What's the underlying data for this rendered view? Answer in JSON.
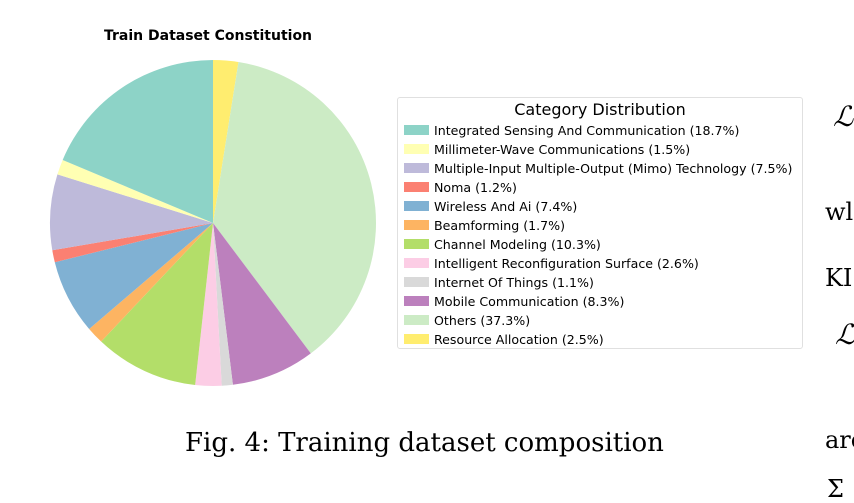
{
  "chart_data": {
    "type": "pie",
    "title": "Train Dataset Constitution",
    "legend_title": "Category Distribution",
    "legend_position": "right",
    "start": "top",
    "direction": "clockwise",
    "slices": [
      {
        "label": "Resource Allocation (2.5%)",
        "value": 2.5,
        "color": "#ffed6f"
      },
      {
        "label": "Others (37.3%)",
        "value": 37.3,
        "color": "#ccebc5"
      },
      {
        "label": "Mobile Communication (8.3%)",
        "value": 8.3,
        "color": "#bc80bd"
      },
      {
        "label": "Internet Of Things (1.1%)",
        "value": 1.1,
        "color": "#d9d9d9"
      },
      {
        "label": "Intelligent Reconfiguration Surface (2.6%)",
        "value": 2.6,
        "color": "#fccde5"
      },
      {
        "label": "Channel Modeling (10.3%)",
        "value": 10.3,
        "color": "#b3de69"
      },
      {
        "label": "Beamforming (1.7%)",
        "value": 1.7,
        "color": "#fdb462"
      },
      {
        "label": "Wireless And Ai (7.4%)",
        "value": 7.4,
        "color": "#80b1d3"
      },
      {
        "label": "Noma (1.2%)",
        "value": 1.2,
        "color": "#fb8072"
      },
      {
        "label": "Multiple-Input Multiple-Output (Mimo) Technology (7.5%)",
        "value": 7.5,
        "color": "#bebada"
      },
      {
        "label": "Millimeter-Wave Communications (1.5%)",
        "value": 1.5,
        "color": "#ffffb3"
      },
      {
        "label": "Integrated Sensing And Communication (18.7%)",
        "value": 18.7,
        "color": "#8dd3c7"
      }
    ],
    "legend": [
      {
        "label": "Integrated Sensing And Communication (18.7%)",
        "color": "#8dd3c7"
      },
      {
        "label": "Millimeter-Wave Communications (1.5%)",
        "color": "#ffffb3"
      },
      {
        "label": "Multiple-Input Multiple-Output (Mimo) Technology (7.5%)",
        "color": "#bebada"
      },
      {
        "label": "Noma (1.2%)",
        "color": "#fb8072"
      },
      {
        "label": "Wireless And Ai (7.4%)",
        "color": "#80b1d3"
      },
      {
        "label": "Beamforming (1.7%)",
        "color": "#fdb462"
      },
      {
        "label": "Channel Modeling (10.3%)",
        "color": "#b3de69"
      },
      {
        "label": "Intelligent Reconfiguration Surface (2.6%)",
        "color": "#fccde5"
      },
      {
        "label": "Internet Of Things (1.1%)",
        "color": "#d9d9d9"
      },
      {
        "label": "Mobile Communication (8.3%)",
        "color": "#bc80bd"
      },
      {
        "label": "Others (37.3%)",
        "color": "#ccebc5"
      },
      {
        "label": "Resource Allocation (2.5%)",
        "color": "#ffed6f"
      }
    ]
  },
  "caption": "Fig. 4: Training dataset composition",
  "margin_fragments": [
    "ℒ",
    "wl",
    "KI",
    "ℒ",
    "are",
    "Σ"
  ]
}
